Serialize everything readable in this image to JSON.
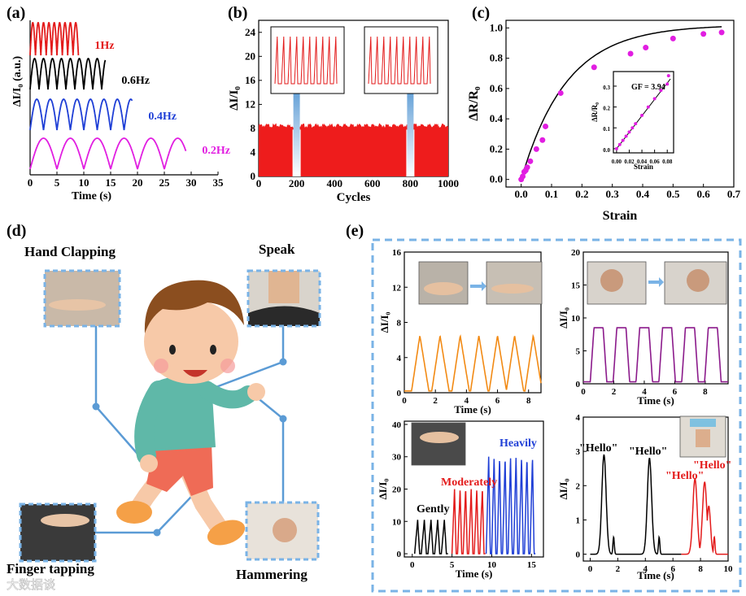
{
  "panels": {
    "a": {
      "label": "(a)"
    },
    "b": {
      "label": "(b)"
    },
    "c": {
      "label": "(c)"
    },
    "d": {
      "label": "(d)"
    },
    "e": {
      "label": "(e)"
    }
  },
  "colors": {
    "red": "#e31b1b",
    "black": "#000000",
    "blue": "#1f3fd6",
    "magenta": "#e11ee1",
    "orange": "#f28a14",
    "purple": "#8b1a8b",
    "dash": "#7ab3e6",
    "limb": "#5b9bd5"
  },
  "chart_data": [
    {
      "id": "a",
      "type": "line",
      "xlabel": "Time (s)",
      "ylabel": "ΔI/I₀ (a.u.)",
      "xlim": [
        0,
        35
      ],
      "xticks": [
        "0",
        "5",
        "10",
        "15",
        "20",
        "25",
        "30",
        "35"
      ],
      "series": [
        {
          "name": "1Hz",
          "freq": 1.0,
          "duration": 9,
          "label": "1Hz",
          "color": "#e31b1b"
        },
        {
          "name": "0.6Hz",
          "freq": 0.6,
          "duration": 14,
          "label": "0.6Hz",
          "color": "#000000"
        },
        {
          "name": "0.4Hz",
          "freq": 0.4,
          "duration": 19,
          "label": "0.4Hz",
          "color": "#1f3fd6"
        },
        {
          "name": "0.2Hz",
          "freq": 0.2,
          "duration": 29,
          "label": "0.2Hz",
          "color": "#e11ee1"
        }
      ]
    },
    {
      "id": "b",
      "type": "bar",
      "xlabel": "Cycles",
      "ylabel": "ΔI/I₀",
      "xlim": [
        0,
        1000
      ],
      "ylim": [
        0,
        26
      ],
      "xticks": [
        "0",
        "200",
        "400",
        "600",
        "800",
        "1000"
      ],
      "yticks": [
        "0",
        "4",
        "8",
        "12",
        "16",
        "20",
        "24"
      ],
      "fill_level": 8.5,
      "insets": [
        {
          "name": "around cycle 200",
          "peaks": 10
        },
        {
          "name": "around cycle 800",
          "peaks": 10
        }
      ]
    },
    {
      "id": "c",
      "type": "scatter",
      "xlabel": "Strain",
      "ylabel": "ΔR/R₀",
      "xlim": [
        -0.05,
        0.7
      ],
      "ylim": [
        -0.05,
        1.05
      ],
      "xticks": [
        "0.0",
        "0.1",
        "0.2",
        "0.3",
        "0.4",
        "0.5",
        "0.6",
        "0.7"
      ],
      "yticks": [
        "0.0",
        "0.2",
        "0.4",
        "0.6",
        "0.8",
        "1.0"
      ],
      "points": [
        [
          0.0,
          0.0
        ],
        [
          0.005,
          0.02
        ],
        [
          0.01,
          0.05
        ],
        [
          0.015,
          0.06
        ],
        [
          0.02,
          0.08
        ],
        [
          0.03,
          0.12
        ],
        [
          0.05,
          0.2
        ],
        [
          0.07,
          0.26
        ],
        [
          0.08,
          0.35
        ],
        [
          0.13,
          0.57
        ],
        [
          0.24,
          0.74
        ],
        [
          0.36,
          0.83
        ],
        [
          0.41,
          0.87
        ],
        [
          0.5,
          0.93
        ],
        [
          0.6,
          0.96
        ],
        [
          0.66,
          0.97
        ]
      ],
      "inset": {
        "xlabel": "Strain",
        "ylabel": "ΔR/R₀",
        "annotation": "GF = 3.94",
        "xticks": [
          "0.00",
          "0.02",
          "0.04",
          "0.06",
          "0.08"
        ],
        "yticks": [
          "0.0",
          "0.1",
          "0.2",
          "0.3"
        ],
        "xlim": [
          -0.005,
          0.09
        ],
        "ylim": [
          -0.02,
          0.37
        ],
        "slope": 3.94,
        "points": [
          [
            0.0,
            0.0
          ],
          [
            0.005,
            0.02
          ],
          [
            0.01,
            0.04
          ],
          [
            0.015,
            0.06
          ],
          [
            0.02,
            0.08
          ],
          [
            0.025,
            0.1
          ],
          [
            0.03,
            0.12
          ],
          [
            0.04,
            0.16
          ],
          [
            0.05,
            0.2
          ],
          [
            0.06,
            0.24
          ],
          [
            0.07,
            0.28
          ],
          [
            0.08,
            0.31
          ],
          [
            0.082,
            0.35
          ]
        ]
      }
    },
    {
      "id": "e1",
      "type": "line",
      "xlabel": "Time (s)",
      "ylabel": "ΔI/I₀",
      "xlim": [
        0,
        8.8
      ],
      "ylim": [
        0,
        16
      ],
      "xticks": [
        "0",
        "2",
        "4",
        "6",
        "8"
      ],
      "yticks": [
        "0",
        "4",
        "8",
        "12",
        "16"
      ],
      "color": "#f28a14",
      "peaks": [
        1.0,
        2.3,
        3.6,
        4.8,
        6.0,
        7.1,
        8.3
      ],
      "peak_height": 6.5
    },
    {
      "id": "e2",
      "type": "line",
      "xlabel": "Time (s)",
      "ylabel": "ΔI/I₀",
      "xlim": [
        0,
        9.5
      ],
      "ylim": [
        0,
        20
      ],
      "xticks": [
        "0",
        "2",
        "4",
        "6",
        "8"
      ],
      "yticks": [
        "0",
        "5",
        "10",
        "15",
        "20"
      ],
      "color": "#8b1a8b",
      "peaks": [
        1.0,
        2.5,
        4.0,
        5.5,
        7.0,
        8.5
      ],
      "peak_height": 8.5
    },
    {
      "id": "e3",
      "type": "line",
      "xlabel": "Time (s)",
      "ylabel": "ΔI/I₀",
      "xlim": [
        -1,
        16.5
      ],
      "ylim": [
        -1,
        41
      ],
      "xticks": [
        "0",
        "5",
        "10",
        "15"
      ],
      "yticks": [
        "0",
        "10",
        "20",
        "30",
        "40"
      ],
      "series": [
        {
          "name": "Gently",
          "color": "#000000",
          "start": 0.3,
          "end": 4.5,
          "peak": 10.5,
          "count": 5
        },
        {
          "name": "Moderately",
          "color": "#e31b1b",
          "start": 5.0,
          "end": 9.2,
          "peak": 20,
          "count": 6
        },
        {
          "name": "Heavily",
          "color": "#1f3fd6",
          "start": 9.3,
          "end": 15.5,
          "peak": 30,
          "count": 9
        }
      ]
    },
    {
      "id": "e4",
      "type": "line",
      "xlabel": "Time (s)",
      "ylabel": "ΔI/I₀",
      "xlim": [
        -0.5,
        10
      ],
      "ylim": [
        -0.2,
        4
      ],
      "xticks": [
        "0",
        "2",
        "4",
        "6",
        "8",
        "10"
      ],
      "yticks": [
        "0",
        "1",
        "2",
        "3",
        "4"
      ],
      "series": [
        {
          "name": "\"Hello\"",
          "color": "#000000",
          "center": 1.0,
          "peak": 2.9
        },
        {
          "name": "\"Hello\"",
          "color": "#000000",
          "center": 4.3,
          "peak": 2.8
        },
        {
          "name": "\"Hello\"",
          "color": "#e31b1b",
          "center": 7.6,
          "peak": 2.2
        },
        {
          "name": "\"Hello\"",
          "color": "#e31b1b",
          "center": 8.3,
          "peak": 2.1
        }
      ]
    }
  ],
  "panel_d": {
    "hand_clapping": "Hand Clapping",
    "speak": "Speak",
    "finger_tapping": "Finger tapping",
    "hammering": "Hammering"
  },
  "panel_e_labels": {
    "gently": "Gently",
    "moderately": "Moderately",
    "heavily": "Heavily",
    "hello1": "\"Hello\"",
    "hello2": "\"Hello\"",
    "hello3": "\"Hello\"",
    "hello4": "\"Hello\""
  },
  "watermark": "大数据谈"
}
